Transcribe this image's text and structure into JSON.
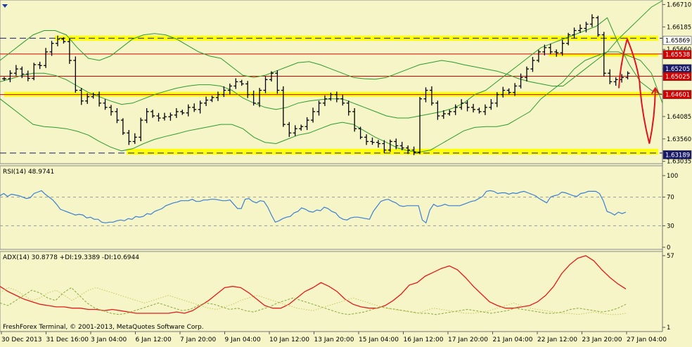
{
  "chart_data": [
    {
      "type": "candlestick",
      "panel": "price",
      "y_ticks": [
        "1.66710",
        "1.66185",
        "1.65660",
        "1.65205",
        "1.64085",
        "1.63560",
        "1.63035"
      ],
      "ylim": [
        1.6303,
        1.6675
      ],
      "price_labels": [
        {
          "text": "1.65869",
          "box": "#ffffff",
          "fg": "#000000",
          "level": 1.65869
        },
        {
          "text": "1.65538",
          "box": "#d40000",
          "fg": "#ffffff",
          "level": 1.65538
        },
        {
          "text": "1.65205",
          "box": "#1a1a6a",
          "fg": "#ffffff",
          "level": 1.65205
        },
        {
          "text": "1.65025",
          "box": "#d40000",
          "fg": "#ffffff",
          "level": 1.65025
        },
        {
          "text": "1.64601",
          "box": "#d40000",
          "fg": "#ffffff",
          "level": 1.64601
        },
        {
          "text": "1.63189",
          "box": "#1a1a6a",
          "fg": "#ffffff",
          "level": 1.63189
        }
      ],
      "horizontal_levels": [
        {
          "value": 1.6592,
          "style": "dashed",
          "color": "#1a1a6a"
        },
        {
          "value": 1.6555,
          "style": "solid",
          "color": "#d40000"
        },
        {
          "value": 1.6503,
          "style": "solid",
          "color": "#d40000"
        },
        {
          "value": 1.646,
          "style": "solid",
          "color": "#d40000"
        },
        {
          "value": 1.6323,
          "style": "dashed",
          "color": "#1a1a6a"
        }
      ],
      "zones": [
        {
          "from": 1.6586,
          "to": 1.6598,
          "color": "#ffff00"
        },
        {
          "from": 1.6549,
          "to": 1.6556,
          "color": "#ffff00"
        },
        {
          "from": 1.6455,
          "to": 1.6466,
          "color": "#ffff00"
        },
        {
          "from": 1.6319,
          "to": 1.6333,
          "color": "#ffff00"
        }
      ],
      "close_series": [
        1.6497,
        1.651,
        1.652,
        1.6508,
        1.6498,
        1.653,
        1.6528,
        1.656,
        1.658,
        1.659,
        1.6584,
        1.654,
        1.647,
        1.6445,
        1.6455,
        1.646,
        1.644,
        1.643,
        1.642,
        1.64,
        1.637,
        1.635,
        1.636,
        1.64,
        1.642,
        1.641,
        1.6405,
        1.6408,
        1.6412,
        1.642,
        1.6417,
        1.643,
        1.6425,
        1.644,
        1.6447,
        1.6453,
        1.646,
        1.647,
        1.648,
        1.649,
        1.6485,
        1.646,
        1.644,
        1.647,
        1.6495,
        1.651,
        1.647,
        1.639,
        1.637,
        1.638,
        1.6385,
        1.64,
        1.642,
        1.644,
        1.645,
        1.646,
        1.645,
        1.644,
        1.642,
        1.638,
        1.636,
        1.635,
        1.6348,
        1.6345,
        1.633,
        1.635,
        1.634,
        1.6335,
        1.633,
        1.6325,
        1.645,
        1.647,
        1.644,
        1.641,
        1.6415,
        1.642,
        1.643,
        1.644,
        1.643,
        1.6425,
        1.642,
        1.643,
        1.644,
        1.646,
        1.647,
        1.6465,
        1.648,
        1.65,
        1.652,
        1.654,
        1.656,
        1.657,
        1.656,
        1.6558,
        1.658,
        1.66,
        1.661,
        1.6615,
        1.6625,
        1.664,
        1.66,
        1.651,
        1.649,
        1.6495,
        1.65,
        1.651
      ],
      "upper_band": [
        1.654,
        1.656,
        1.658,
        1.66,
        1.661,
        1.661,
        1.66,
        1.657,
        1.6545,
        1.654,
        1.655,
        1.657,
        1.659,
        1.66,
        1.6603,
        1.66,
        1.659,
        1.6575,
        1.656,
        1.655,
        1.6545,
        1.6525,
        1.6505,
        1.65,
        1.6505,
        1.6515,
        1.6525,
        1.6535,
        1.6537,
        1.653,
        1.652,
        1.651,
        1.65,
        1.6497,
        1.6496,
        1.65,
        1.651,
        1.652,
        1.653,
        1.6535,
        1.654,
        1.6536,
        1.653,
        1.6525,
        1.652,
        1.6515,
        1.6507,
        1.6497,
        1.649,
        1.6485,
        1.648,
        1.648,
        1.65,
        1.652,
        1.654,
        1.656,
        1.659,
        1.6615,
        1.664,
        1.6665,
        1.668
      ],
      "lower_band": [
        1.645,
        1.643,
        1.641,
        1.639,
        1.6385,
        1.6383,
        1.638,
        1.6374,
        1.6365,
        1.635,
        1.6337,
        1.6328,
        1.6333,
        1.6345,
        1.6355,
        1.6362,
        1.6368,
        1.6375,
        1.638,
        1.6385,
        1.639,
        1.639,
        1.638,
        1.636,
        1.6348,
        1.6345,
        1.6355,
        1.6365,
        1.637,
        1.638,
        1.639,
        1.6395,
        1.639,
        1.6375,
        1.636,
        1.6348,
        1.6335,
        1.6328,
        1.6325,
        1.633,
        1.6345,
        1.636,
        1.6375,
        1.6383,
        1.6385,
        1.6385,
        1.639,
        1.6405,
        1.642,
        1.645,
        1.647,
        1.649,
        1.652,
        1.654,
        1.655,
        1.656,
        1.656,
        1.655,
        1.654,
        1.651,
        1.644
      ],
      "mid_band": [
        1.649,
        1.6497,
        1.6505,
        1.651,
        1.651,
        1.6505,
        1.6495,
        1.648,
        1.6465,
        1.6455,
        1.6445,
        1.6437,
        1.644,
        1.645,
        1.646,
        1.6468,
        1.6475,
        1.648,
        1.6483,
        1.6483,
        1.648,
        1.647,
        1.6452,
        1.644,
        1.643,
        1.6425,
        1.643,
        1.644,
        1.6445,
        1.6448,
        1.645,
        1.645,
        1.644,
        1.643,
        1.642,
        1.641,
        1.6405,
        1.6405,
        1.641,
        1.6415,
        1.642,
        1.6428,
        1.644,
        1.646,
        1.647,
        1.649,
        1.651,
        1.653,
        1.655,
        1.657,
        1.658,
        1.659,
        1.66,
        1.661,
        1.662,
        1.664,
        1.658,
        1.653,
        1.649,
        1.647,
        1.646
      ],
      "forecast_path": [
        [
          0,
          1.6475
        ],
        [
          0.17,
          1.659
        ],
        [
          0.42,
          1.649
        ],
        [
          0.62,
          1.6345
        ],
        [
          0.74,
          1.6475
        ]
      ]
    },
    {
      "type": "line",
      "panel": "RSI",
      "label": "RSI(14) 48.9741",
      "levels": [
        70,
        30
      ],
      "scale_labels": [
        "100",
        "70",
        "30",
        "0"
      ],
      "ylim": [
        0,
        100
      ],
      "values": [
        72,
        75,
        71,
        74,
        73,
        72,
        70,
        68,
        69,
        75,
        77,
        79,
        74,
        70,
        66,
        60,
        53,
        51,
        49,
        47,
        45,
        46,
        45,
        41,
        42,
        39,
        39,
        35,
        34,
        35,
        35,
        37,
        38,
        37,
        40,
        39,
        43,
        42,
        43,
        47,
        46,
        50,
        52,
        54,
        58,
        60,
        62,
        63,
        65,
        65,
        65,
        67,
        64,
        64,
        66,
        66,
        67,
        67,
        66,
        65,
        65,
        66,
        60,
        54,
        54,
        67,
        68,
        64,
        62,
        65,
        64,
        56,
        45,
        35,
        37,
        40,
        42,
        43,
        48,
        50,
        55,
        53,
        50,
        49,
        52,
        51,
        56,
        54,
        50,
        48,
        42,
        39,
        38,
        41,
        42,
        42,
        41,
        40,
        39,
        50,
        57,
        64,
        66,
        67,
        64,
        62,
        58,
        57,
        58,
        58,
        58,
        58,
        38,
        34,
        52,
        60,
        57,
        58,
        60,
        58,
        58,
        58,
        58,
        60,
        62,
        64,
        65,
        68,
        71,
        78,
        79,
        78,
        75,
        76,
        76,
        74,
        76,
        75,
        77,
        78,
        76,
        74,
        72,
        68,
        65,
        62,
        70,
        72,
        73,
        77,
        76,
        74,
        72,
        71,
        75,
        76,
        78,
        78,
        78,
        75,
        65,
        50,
        48,
        45,
        49,
        47,
        49
      ]
    },
    {
      "type": "line",
      "panel": "ADX",
      "label": "ADX(14) 30.8778 +DI:19.3389 -DI:10.6944",
      "scale_labels": [
        "57",
        "1"
      ],
      "ylim": [
        1,
        57
      ],
      "series": [
        {
          "name": "ADX",
          "color": "#e51a1a",
          "style": "solid",
          "values": [
            33,
            29,
            26,
            23,
            21,
            19,
            18,
            17,
            17,
            16,
            16,
            15,
            15,
            14,
            15,
            14,
            13,
            12,
            12,
            12,
            12,
            12,
            13,
            12,
            14,
            18,
            22,
            27,
            32,
            33,
            32,
            28,
            23,
            18,
            16,
            16,
            19,
            24,
            29,
            32,
            36,
            33,
            29,
            23,
            19,
            17,
            16,
            16,
            18,
            22,
            27,
            34,
            36,
            41,
            44,
            47,
            49,
            46,
            40,
            33,
            27,
            21,
            18,
            16,
            16,
            17,
            18,
            21,
            26,
            33,
            43,
            50,
            55,
            57,
            53,
            46,
            40,
            35,
            31
          ]
        },
        {
          "name": "+DI",
          "color": "#8aa83a",
          "style": "dashed",
          "values": [
            20,
            18,
            22,
            26,
            30,
            28,
            24,
            22,
            28,
            32,
            26,
            20,
            16,
            14,
            12,
            11,
            12,
            14,
            16,
            18,
            20,
            18,
            16,
            14,
            15,
            18,
            20,
            19,
            17,
            15,
            16,
            14,
            13,
            15,
            17,
            20,
            22,
            24,
            22,
            20,
            18,
            16,
            14,
            12,
            11,
            12,
            13,
            15,
            17,
            16,
            15,
            14,
            13,
            12,
            12,
            11,
            12,
            13,
            14,
            15,
            14,
            13,
            12,
            13,
            14,
            16,
            15,
            14,
            13,
            12,
            12,
            13,
            15,
            16,
            15,
            14,
            13,
            14,
            16,
            19
          ]
        },
        {
          "name": "-DI",
          "color": "#c8c85a",
          "style": "dotted",
          "values": [
            28,
            32,
            30,
            26,
            22,
            24,
            28,
            30,
            26,
            22,
            26,
            30,
            32,
            30,
            28,
            26,
            24,
            22,
            20,
            22,
            24,
            26,
            24,
            22,
            20,
            18,
            16,
            15,
            17,
            19,
            22,
            24,
            26,
            24,
            22,
            20,
            18,
            16,
            15,
            14,
            16,
            18,
            20,
            22,
            24,
            22,
            20,
            18,
            16,
            15,
            14,
            13,
            12,
            14,
            16,
            15,
            14,
            13,
            12,
            12,
            13,
            14,
            16,
            18,
            20,
            18,
            16,
            15,
            14,
            13,
            12,
            12,
            11,
            12,
            13,
            12,
            11,
            11,
            12
          ]
        }
      ]
    }
  ],
  "x_axis_labels": [
    "30 Dec 2013",
    "31 Dec 16:00",
    "3 Jan 04:00",
    "6 Jan 12:00",
    "7 Jan 20:00",
    "9 Jan 04:00",
    "10 Jan 12:00",
    "13 Jan 20:00",
    "15 Jan 04:00",
    "16 Jan 12:00",
    "17 Jan 20:00",
    "21 Jan 04:00",
    "22 Jan 12:00",
    "23 Jan 20:00",
    "27 Jan 04:00"
  ],
  "watermark": "FreshForex Terminal, © 2001-2013, MetaQuotes Software Corp.",
  "colors": {
    "background": "#f5f5c8",
    "candle": "#000000",
    "bands": "#2e9a2e",
    "rsi": "#3a7fd6",
    "zone": "#ffff00"
  }
}
